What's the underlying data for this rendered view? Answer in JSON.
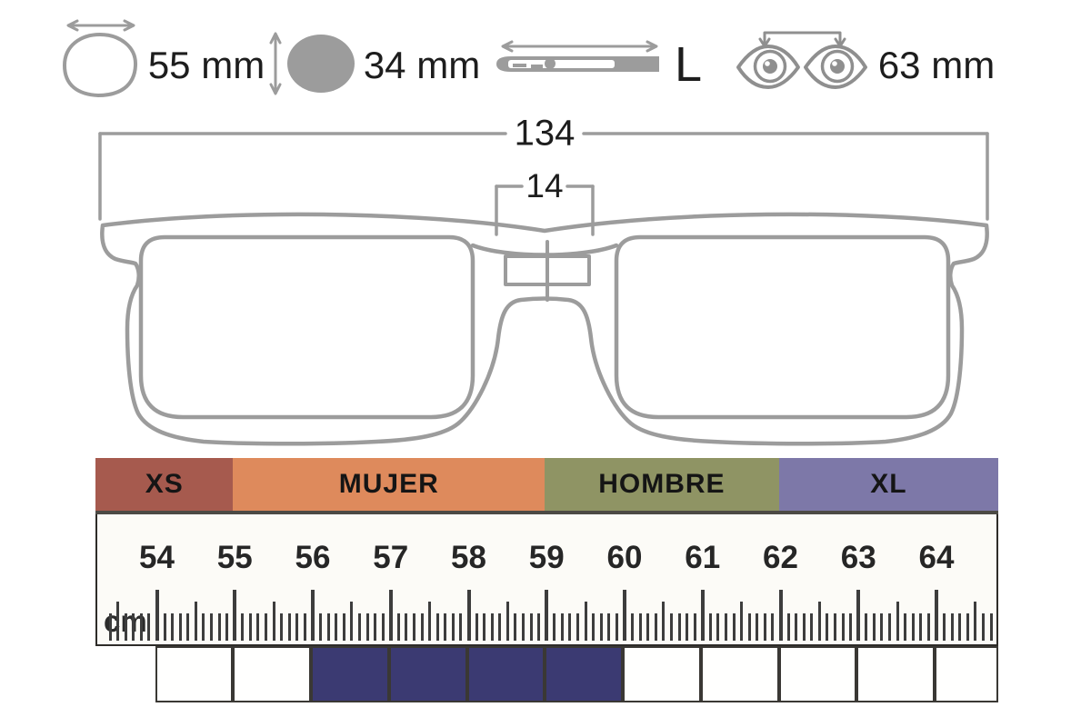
{
  "title": "glasses-size-guide",
  "icon_row": {
    "items": [
      {
        "name": "lens-width",
        "label": "55 mm"
      },
      {
        "name": "lens-height",
        "label": "34 mm"
      },
      {
        "name": "temple-length",
        "label": "L"
      },
      {
        "name": "pupil-distance",
        "label": "63 mm"
      }
    ]
  },
  "frame_diagram": {
    "total_width_mm": "134",
    "bridge_width_mm": "14"
  },
  "size_chart": {
    "unit_label": "cm",
    "bands": [
      {
        "label": "XS",
        "color": "#a65a4e",
        "from_cm": 53.24,
        "to_cm": 55
      },
      {
        "label": "MUJER",
        "color": "#de8a5c",
        "from_cm": 55,
        "to_cm": 59
      },
      {
        "label": "HOMBRE",
        "color": "#8f9464",
        "from_cm": 59,
        "to_cm": 62
      },
      {
        "label": "XL",
        "color": "#7d78a8",
        "from_cm": 62,
        "to_cm": 64.82
      }
    ],
    "ruler_numbers_cm": [
      54,
      55,
      56,
      57,
      58,
      59,
      60,
      61,
      62,
      63,
      64
    ],
    "tick_range_tenths_cm": [
      534,
      647
    ],
    "highlight": {
      "from_cm": 56,
      "to_cm": 60,
      "color": "#3b3a72"
    },
    "cell_boundaries_cm": [
      54,
      55,
      56,
      57,
      58,
      59,
      60,
      61,
      62,
      63,
      64,
      64.82
    ]
  },
  "colors": {
    "line_art": "#9c9c9c",
    "text": "#1d1d1d",
    "tick": "#3d3d3d",
    "ruler_bg": "#fcfbf7",
    "cell_bg": "#fffffe",
    "border_dark": "#3a3834"
  }
}
